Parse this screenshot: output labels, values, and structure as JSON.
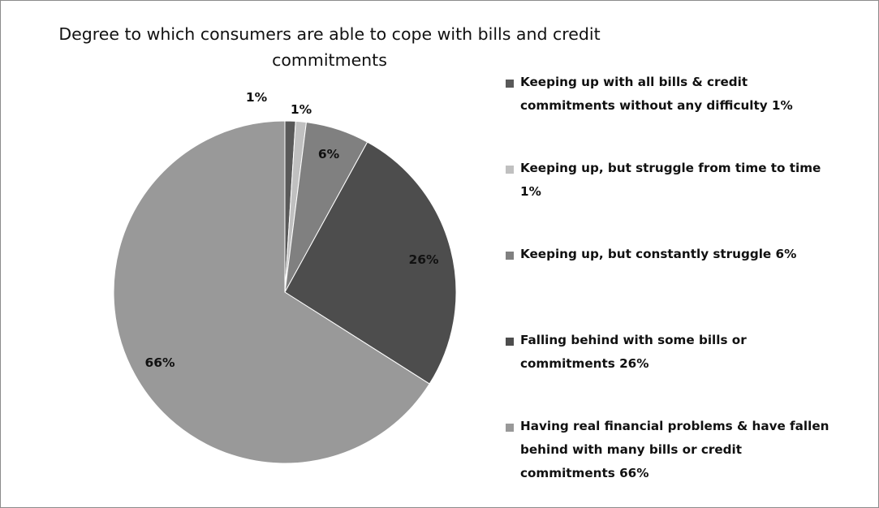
{
  "chart_data": {
    "type": "pie",
    "title": "Degree to which consumers are able to cope with bills and credit commitments",
    "title_lines": [
      "Degree to which consumers are able to cope with bills and credit",
      "commitments"
    ],
    "slices": [
      {
        "name": "Keeping up with all bills & credit commitments without any difficulty",
        "value": 1,
        "label": "1%",
        "color": "#595959"
      },
      {
        "name": "Keeping up, but struggle from time to time",
        "value": 1,
        "label": "1%",
        "color": "#c0c0c0"
      },
      {
        "name": "Keeping up, but constantly struggle",
        "value": 6,
        "label": "6%",
        "color": "#808080"
      },
      {
        "name": "Falling behind with some bills or commitments",
        "value": 26,
        "label": "26%",
        "color": "#4d4d4d"
      },
      {
        "name": "Having real financial problems & have fallen behind with many bills or credit commitments",
        "value": 66,
        "label": "66%",
        "color": "#999999"
      }
    ],
    "legend_position": "right",
    "legend": [
      [
        "Keeping up with all bills & credit",
        "commitments without any difficulty 1%"
      ],
      [
        "Keeping up, but struggle from time to time",
        "1%"
      ],
      [
        "Keeping up, but constantly struggle 6%"
      ],
      [
        "Falling behind with some bills or",
        "commitments 26%"
      ],
      [
        "Having real financial problems & have fallen",
        "behind with many bills or credit",
        "commitments 66%"
      ]
    ]
  }
}
